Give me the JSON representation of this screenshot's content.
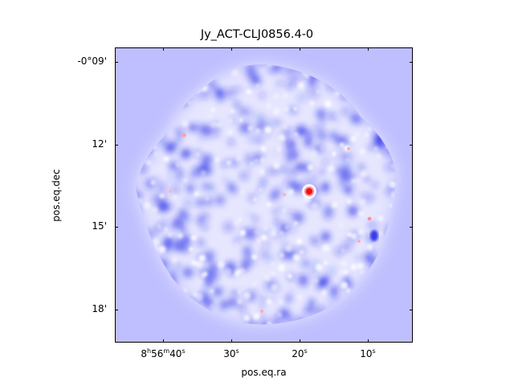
{
  "plot": {
    "title": "Jy_ACT-CLJ0856.4-0",
    "xlabel": "pos.eq.ra",
    "ylabel": "pos.eq.dec",
    "y_ticks": [
      "-0°09'",
      "12'",
      "15'",
      "18'"
    ],
    "x_ticks": {
      "first": {
        "h": "8",
        "h_unit": "h",
        "m": "56",
        "m_unit": "m",
        "s": "40",
        "s_unit": "s"
      },
      "rest": [
        {
          "value": "30",
          "unit": "s"
        },
        {
          "value": "20",
          "unit": "s"
        },
        {
          "value": "10",
          "unit": "s"
        }
      ]
    }
  },
  "colors": {
    "background_blue": "#bfbfff",
    "noise_blue": "#1a22e6",
    "source_red": "#e81515",
    "frame": "#000000"
  }
}
